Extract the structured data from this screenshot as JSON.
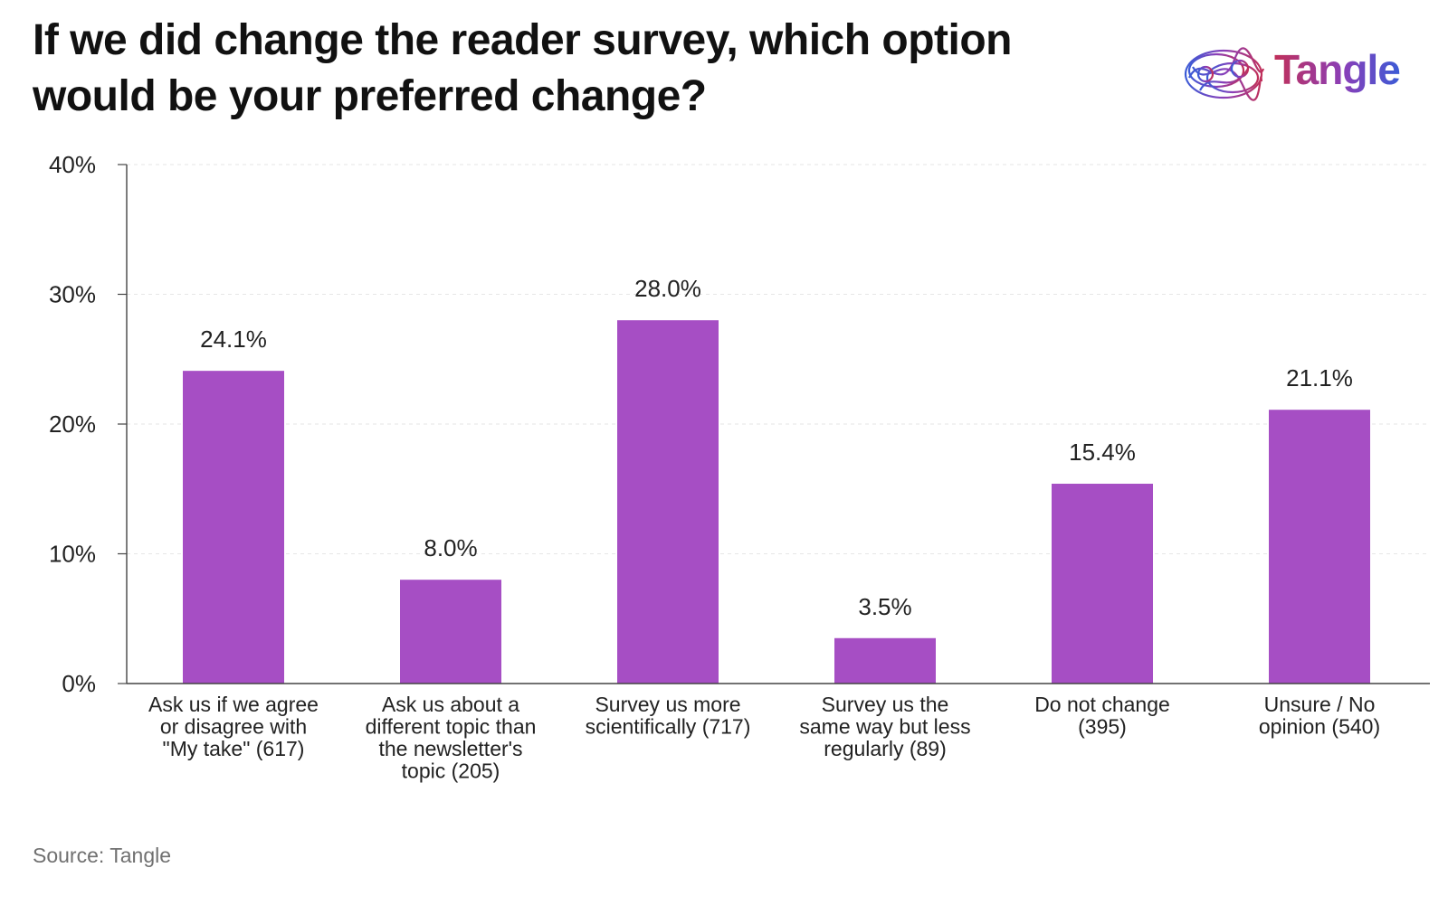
{
  "title_lines": [
    "If we did change the reader survey, which option",
    "would be your preferred change?"
  ],
  "logo": {
    "text": "Tangle",
    "icon": "tangled-brain-icon"
  },
  "source": "Source: Tangle",
  "colors": {
    "bar": "#a64ec4",
    "axis": "#444444",
    "grid": "#e6e6e6"
  },
  "chart_data": {
    "type": "bar",
    "title": "If we did change the reader survey, which option would be your preferred change?",
    "categories": [
      "Ask us if we agree or disagree with \"My take\" (617)",
      "Ask us about a different topic than the newsletter's topic (205)",
      "Survey us more scientifically (717)",
      "Survey us the same way but less regularly (89)",
      "Do not change (395)",
      "Unsure / No opinion (540)"
    ],
    "category_lines": [
      [
        "Ask us if we agree",
        "or disagree with",
        "\"My take\" (617)"
      ],
      [
        "Ask us about a",
        "different topic than",
        "the newsletter's",
        "topic (205)"
      ],
      [
        "Survey us more",
        "scientifically (717)"
      ],
      [
        "Survey us the",
        "same way but less",
        "regularly (89)"
      ],
      [
        "Do not change",
        "(395)"
      ],
      [
        "Unsure / No",
        "opinion (540)"
      ]
    ],
    "values": [
      24.1,
      8.0,
      28.0,
      3.5,
      15.4,
      21.1
    ],
    "data_labels": [
      "24.1%",
      "8.0%",
      "28.0%",
      "3.5%",
      "15.4%",
      "21.1%"
    ],
    "ylim": [
      0,
      40
    ],
    "yticks": [
      0,
      10,
      20,
      30,
      40
    ],
    "ytick_labels": [
      "0%",
      "10%",
      "20%",
      "30%",
      "40%"
    ],
    "grid": true,
    "xlabel": "",
    "ylabel": ""
  }
}
